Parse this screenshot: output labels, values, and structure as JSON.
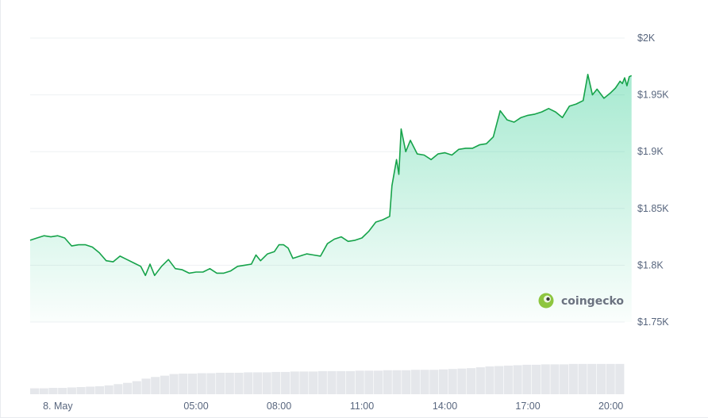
{
  "chart_data": [
    {
      "type": "area",
      "title": "",
      "xlabel": "",
      "ylabel": "",
      "ylim": [
        1750,
        2000
      ],
      "y_ticks": [
        "$2K",
        "$1.95K",
        "$1.9K",
        "$1.85K",
        "$1.8K",
        "$1.75K"
      ],
      "y_tick_values": [
        2000,
        1950,
        1900,
        1850,
        1800,
        1750
      ],
      "x_range": [
        "2023-05-07T23:00",
        "2023-05-08T20:30"
      ],
      "x_ticks": [
        {
          "label": "8. May",
          "t": "2023-05-08T00:00"
        },
        {
          "label": "05:00",
          "t": "2023-05-08T05:00"
        },
        {
          "label": "08:00",
          "t": "2023-05-08T08:00"
        },
        {
          "label": "11:00",
          "t": "2023-05-08T11:00"
        },
        {
          "label": "14:00",
          "t": "2023-05-08T14:00"
        },
        {
          "label": "17:00",
          "t": "2023-05-08T17:00"
        },
        {
          "label": "20:00",
          "t": "2023-05-08T20:00"
        }
      ],
      "grid": true,
      "line_color": "#16a34a",
      "fill_color": "#16c784",
      "series": [
        {
          "points": [
            [
              "2023-05-07T23:00",
              1822
            ],
            [
              "2023-05-07T23:15",
              1824
            ],
            [
              "2023-05-07T23:30",
              1826
            ],
            [
              "2023-05-07T23:45",
              1825
            ],
            [
              "2023-05-08T00:00",
              1826
            ],
            [
              "2023-05-08T00:15",
              1824
            ],
            [
              "2023-05-08T00:30",
              1817
            ],
            [
              "2023-05-08T00:45",
              1818
            ],
            [
              "2023-05-08T01:00",
              1818
            ],
            [
              "2023-05-08T01:15",
              1816
            ],
            [
              "2023-05-08T01:30",
              1811
            ],
            [
              "2023-05-08T01:45",
              1804
            ],
            [
              "2023-05-08T02:00",
              1803
            ],
            [
              "2023-05-08T02:15",
              1808
            ],
            [
              "2023-05-08T02:30",
              1805
            ],
            [
              "2023-05-08T02:45",
              1802
            ],
            [
              "2023-05-08T03:00",
              1799
            ],
            [
              "2023-05-08T03:10",
              1791
            ],
            [
              "2023-05-08T03:20",
              1801
            ],
            [
              "2023-05-08T03:30",
              1791
            ],
            [
              "2023-05-08T03:45",
              1799
            ],
            [
              "2023-05-08T04:00",
              1805
            ],
            [
              "2023-05-08T04:15",
              1797
            ],
            [
              "2023-05-08T04:30",
              1796
            ],
            [
              "2023-05-08T04:45",
              1793
            ],
            [
              "2023-05-08T05:00",
              1794
            ],
            [
              "2023-05-08T05:15",
              1794
            ],
            [
              "2023-05-08T05:30",
              1797
            ],
            [
              "2023-05-08T05:45",
              1793
            ],
            [
              "2023-05-08T06:00",
              1793
            ],
            [
              "2023-05-08T06:15",
              1795
            ],
            [
              "2023-05-08T06:30",
              1799
            ],
            [
              "2023-05-08T06:45",
              1800
            ],
            [
              "2023-05-08T07:00",
              1801
            ],
            [
              "2023-05-08T07:10",
              1809
            ],
            [
              "2023-05-08T07:20",
              1804
            ],
            [
              "2023-05-08T07:35",
              1810
            ],
            [
              "2023-05-08T07:50",
              1812
            ],
            [
              "2023-05-08T08:00",
              1818
            ],
            [
              "2023-05-08T08:10",
              1818
            ],
            [
              "2023-05-08T08:20",
              1815
            ],
            [
              "2023-05-08T08:30",
              1806
            ],
            [
              "2023-05-08T08:45",
              1808
            ],
            [
              "2023-05-08T09:00",
              1810
            ],
            [
              "2023-05-08T09:15",
              1809
            ],
            [
              "2023-05-08T09:30",
              1808
            ],
            [
              "2023-05-08T09:45",
              1819
            ],
            [
              "2023-05-08T10:00",
              1823
            ],
            [
              "2023-05-08T10:15",
              1825
            ],
            [
              "2023-05-08T10:30",
              1821
            ],
            [
              "2023-05-08T10:45",
              1822
            ],
            [
              "2023-05-08T11:00",
              1824
            ],
            [
              "2023-05-08T11:15",
              1830
            ],
            [
              "2023-05-08T11:30",
              1838
            ],
            [
              "2023-05-08T11:45",
              1840
            ],
            [
              "2023-05-08T12:00",
              1843
            ],
            [
              "2023-05-08T12:05",
              1870
            ],
            [
              "2023-05-08T12:15",
              1893
            ],
            [
              "2023-05-08T12:20",
              1880
            ],
            [
              "2023-05-08T12:25",
              1920
            ],
            [
              "2023-05-08T12:35",
              1900
            ],
            [
              "2023-05-08T12:45",
              1910
            ],
            [
              "2023-05-08T13:00",
              1898
            ],
            [
              "2023-05-08T13:15",
              1897
            ],
            [
              "2023-05-08T13:30",
              1893
            ],
            [
              "2023-05-08T13:45",
              1898
            ],
            [
              "2023-05-08T14:00",
              1899
            ],
            [
              "2023-05-08T14:15",
              1897
            ],
            [
              "2023-05-08T14:30",
              1902
            ],
            [
              "2023-05-08T14:45",
              1903
            ],
            [
              "2023-05-08T15:00",
              1903
            ],
            [
              "2023-05-08T15:15",
              1906
            ],
            [
              "2023-05-08T15:30",
              1907
            ],
            [
              "2023-05-08T15:45",
              1913
            ],
            [
              "2023-05-08T16:00",
              1936
            ],
            [
              "2023-05-08T16:15",
              1928
            ],
            [
              "2023-05-08T16:30",
              1926
            ],
            [
              "2023-05-08T16:45",
              1930
            ],
            [
              "2023-05-08T17:00",
              1932
            ],
            [
              "2023-05-08T17:15",
              1933
            ],
            [
              "2023-05-08T17:30",
              1935
            ],
            [
              "2023-05-08T17:45",
              1938
            ],
            [
              "2023-05-08T18:00",
              1935
            ],
            [
              "2023-05-08T18:15",
              1930
            ],
            [
              "2023-05-08T18:30",
              1940
            ],
            [
              "2023-05-08T18:45",
              1942
            ],
            [
              "2023-05-08T19:00",
              1945
            ],
            [
              "2023-05-08T19:10",
              1968
            ],
            [
              "2023-05-08T19:20",
              1950
            ],
            [
              "2023-05-08T19:30",
              1955
            ],
            [
              "2023-05-08T19:45",
              1947
            ],
            [
              "2023-05-08T20:00",
              1952
            ],
            [
              "2023-05-08T20:10",
              1956
            ],
            [
              "2023-05-08T20:20",
              1962
            ],
            [
              "2023-05-08T20:25",
              1960
            ],
            [
              "2023-05-08T20:30",
              1965
            ],
            [
              "2023-05-08T20:35",
              1958
            ],
            [
              "2023-05-08T20:40",
              1966
            ],
            [
              "2023-05-08T20:45",
              1967
            ]
          ]
        }
      ]
    },
    {
      "type": "bar",
      "title": "",
      "note": "trading volume histogram below the price chart, no y-axis labels",
      "bar_color": "#e5e7eb",
      "relative_values": [
        0.14,
        0.14,
        0.15,
        0.15,
        0.16,
        0.17,
        0.18,
        0.19,
        0.21,
        0.24,
        0.27,
        0.31,
        0.37,
        0.41,
        0.44,
        0.48,
        0.49,
        0.49,
        0.5,
        0.5,
        0.51,
        0.51,
        0.51,
        0.52,
        0.52,
        0.52,
        0.53,
        0.53,
        0.54,
        0.54,
        0.54,
        0.55,
        0.55,
        0.55,
        0.55,
        0.56,
        0.56,
        0.56,
        0.57,
        0.57,
        0.57,
        0.58,
        0.58,
        0.58,
        0.59,
        0.6,
        0.61,
        0.62,
        0.64,
        0.66,
        0.67,
        0.68,
        0.69,
        0.7,
        0.7,
        0.71,
        0.71,
        0.71,
        0.72,
        0.72,
        0.72,
        0.72,
        0.72,
        0.72
      ]
    }
  ],
  "brand": {
    "name": "coingecko",
    "accent": "#8dc63f",
    "dark": "#4b5563"
  }
}
